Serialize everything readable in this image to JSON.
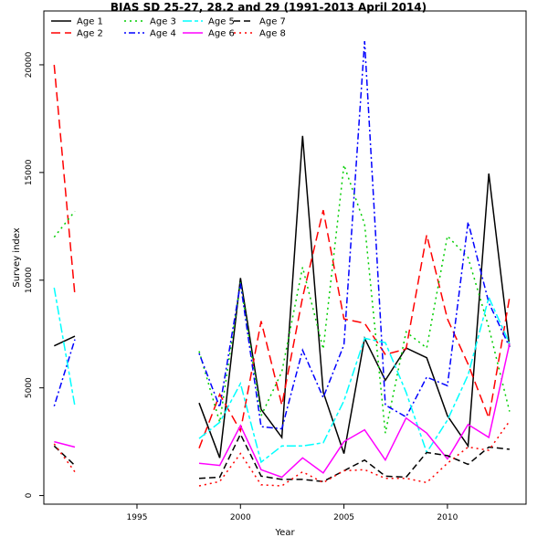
{
  "chart_data": {
    "type": "line",
    "title": "BIAS SD 25-27, 28.2 and 29 (1991-2013 April 2014)",
    "xlabel": "Year",
    "ylabel": "Survey index",
    "xlim": [
      1990.5,
      2013.8
    ],
    "ylim": [
      -400,
      22500
    ],
    "x_ticks": [
      1995,
      2000,
      2005,
      2010
    ],
    "y_ticks": [
      0,
      5000,
      10000,
      15000,
      20000
    ],
    "grid": false,
    "legend_position": "top-left",
    "years": [
      1991,
      1992,
      1993,
      1994,
      1995,
      1996,
      1997,
      1998,
      1999,
      2000,
      2001,
      2002,
      2003,
      2004,
      2005,
      2006,
      2007,
      2008,
      2009,
      2010,
      2011,
      2012,
      2013
    ],
    "series": [
      {
        "name": "Age 1",
        "color": "#000000",
        "dash": "solid",
        "values": [
          6950,
          7400,
          null,
          null,
          null,
          null,
          null,
          4300,
          1750,
          10100,
          4000,
          2700,
          16700,
          4800,
          1950,
          7300,
          5350,
          6850,
          6400,
          3700,
          2300,
          14950,
          6900
        ]
      },
      {
        "name": "Age 2",
        "color": "#ff0000",
        "dash": "longdash",
        "values": [
          20000,
          9300,
          null,
          null,
          null,
          null,
          null,
          2200,
          4700,
          3000,
          8100,
          4200,
          9200,
          13250,
          8200,
          8000,
          6550,
          6800,
          12100,
          8200,
          6100,
          3600,
          9200
        ]
      },
      {
        "name": "Age 3",
        "color": "#00cd00",
        "dash": "dotted",
        "values": [
          12000,
          13200,
          null,
          null,
          null,
          null,
          null,
          6700,
          3400,
          9900,
          3700,
          5750,
          10600,
          6800,
          15350,
          12600,
          2900,
          7600,
          6850,
          12050,
          11050,
          7800,
          3900
        ]
      },
      {
        "name": "Age 4",
        "color": "#0000ff",
        "dash": "dotdash",
        "values": [
          4150,
          7250,
          null,
          null,
          null,
          null,
          null,
          6600,
          4100,
          9850,
          3200,
          3100,
          6750,
          4550,
          7000,
          21100,
          4200,
          3650,
          5500,
          5100,
          12700,
          8950,
          6900
        ]
      },
      {
        "name": "Age 5",
        "color": "#00ffff",
        "dash": "twodash",
        "values": [
          9650,
          4150,
          null,
          null,
          null,
          null,
          null,
          2650,
          3400,
          5200,
          1550,
          2300,
          2300,
          2450,
          4400,
          7300,
          7100,
          4800,
          2000,
          3500,
          5600,
          9200,
          7050
        ]
      },
      {
        "name": "Age 6",
        "color": "#ff00ff",
        "dash": "solid",
        "values": [
          2500,
          2250,
          null,
          null,
          null,
          null,
          null,
          1500,
          1400,
          3250,
          1200,
          850,
          1750,
          1050,
          2500,
          3050,
          1650,
          3600,
          2900,
          1700,
          3300,
          2700,
          7050
        ]
      },
      {
        "name": "Age 7",
        "color": "#000000",
        "dash": "dashed",
        "values": [
          2300,
          1400,
          null,
          null,
          null,
          null,
          null,
          800,
          850,
          2850,
          900,
          750,
          750,
          650,
          1150,
          1650,
          900,
          850,
          2000,
          1850,
          1450,
          2250,
          2150
        ]
      },
      {
        "name": "Age 8",
        "color": "#ff0000",
        "dash": "dotted",
        "values": [
          2400,
          1100,
          null,
          null,
          null,
          null,
          null,
          450,
          650,
          1950,
          500,
          450,
          1100,
          600,
          1150,
          1200,
          800,
          800,
          600,
          1500,
          2250,
          2100,
          3450
        ]
      }
    ]
  }
}
